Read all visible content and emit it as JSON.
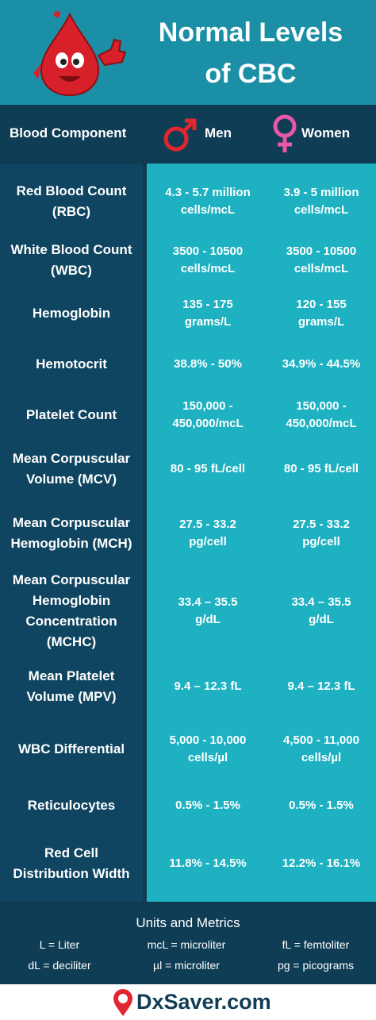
{
  "header": {
    "title": [
      "Normal Levels",
      "of CBC"
    ]
  },
  "table": {
    "columns": [
      "Blood Component",
      "Men",
      "Women"
    ],
    "rows": [
      {
        "component": [
          "Red Blood Count",
          "(RBC)"
        ],
        "men": [
          "4.3 - 5.7 million",
          "cells/mcL"
        ],
        "women": [
          "3.9 - 5 million",
          "cells/mcL"
        ]
      },
      {
        "component": [
          "White Blood Count",
          "(WBC)"
        ],
        "men": [
          "3500 - 10500",
          "cells/mcL"
        ],
        "women": [
          "3500 - 10500",
          "cells/mcL"
        ]
      },
      {
        "component": [
          "Hemoglobin"
        ],
        "men": [
          "135 - 175",
          "grams/L"
        ],
        "women": [
          "120 - 155",
          "grams/L"
        ]
      },
      {
        "component": [
          "Hemotocrit"
        ],
        "men": [
          "38.8% - 50%"
        ],
        "women": [
          "34.9% - 44.5%"
        ]
      },
      {
        "component": [
          "Platelet Count"
        ],
        "men": [
          "150,000 -",
          "450,000/mcL"
        ],
        "women": [
          "150,000 -",
          "450,000/mcL"
        ]
      },
      {
        "component": [
          "Mean Corpuscular",
          "Volume (MCV)"
        ],
        "men": [
          "80 - 95 fL/cell"
        ],
        "women": [
          "80 - 95 fL/cell"
        ]
      },
      {
        "component": [
          "Mean Corpuscular",
          "Hemoglobin (MCH)"
        ],
        "men": [
          "27.5 - 33.2",
          "pg/cell"
        ],
        "women": [
          "27.5 - 33.2",
          "pg/cell"
        ]
      },
      {
        "component": [
          "Mean Corpuscular",
          "Hemoglobin",
          "Concentration",
          "(MCHC)"
        ],
        "men": [
          "33.4 – 35.5",
          "g/dL"
        ],
        "women": [
          "33.4 – 35.5",
          "g/dL"
        ]
      },
      {
        "component": [
          "Mean Platelet",
          "Volume (MPV)"
        ],
        "men": [
          "9.4 – 12.3 fL"
        ],
        "women": [
          "9.4 – 12.3 fL"
        ]
      },
      {
        "component": [
          "WBC Differential"
        ],
        "men": [
          "5,000 - 10,000",
          "cells/µl"
        ],
        "women": [
          "4,500 - 11,000",
          "cells/µl"
        ]
      },
      {
        "component": [
          "Reticulocytes"
        ],
        "men": [
          "0.5% - 1.5%"
        ],
        "women": [
          "0.5% - 1.5%"
        ]
      },
      {
        "component": [
          "Red Cell",
          "Distribution Width"
        ],
        "men": [
          "11.8% - 14.5%"
        ],
        "women": [
          "12.2% - 16.1%"
        ]
      }
    ]
  },
  "footer": {
    "title": "Units and Metrics",
    "units": [
      "L = Liter",
      "mcL = microliter",
      "fL = femtoliter",
      "dL = deciliter",
      "µl = microliter",
      "pg = picograms"
    ],
    "brand": "DxSaver.com"
  }
}
